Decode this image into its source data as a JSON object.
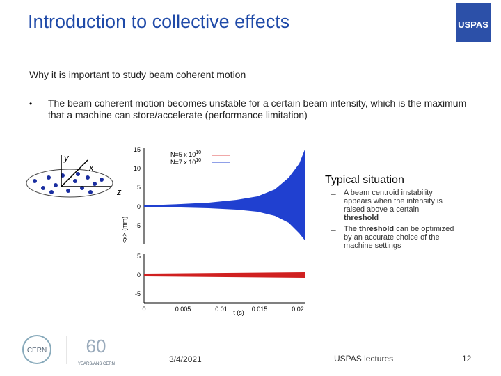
{
  "header": {
    "title": "Introduction to collective effects",
    "logo": "USPAS"
  },
  "subtitle": "Why it is important to study beam coherent motion",
  "bullet": {
    "marker": "•",
    "text": "The beam coherent motion becomes unstable for a certain beam intensity, which is the maximum that a machine can store/accelerate (performance limitation)"
  },
  "diagram": {
    "y_label": "y",
    "x_label": "x",
    "z_label": "z"
  },
  "figure": {
    "legend": [
      {
        "text": "N=5 x 10",
        "exponent": "10"
      },
      {
        "text": "N=7 x 10",
        "exponent": "10"
      }
    ],
    "top_ticks": [
      "15",
      "10",
      "5",
      "0",
      "-5"
    ],
    "bottom_ticks": [
      "5",
      "0",
      "-5"
    ],
    "x_ticks": [
      "0",
      "0.005",
      "0.01",
      "0.015",
      "0.02"
    ],
    "x_label": "t (s)",
    "y_label": "<x> (mm)"
  },
  "box": {
    "heading": "Typical situation",
    "items": [
      {
        "marker": "–",
        "parts": [
          {
            "text": "A beam centroid instability appears when the intensity is raised above a certain "
          },
          {
            "text": "threshold",
            "bold": true
          }
        ]
      },
      {
        "marker": "–",
        "parts": [
          {
            "text": "The "
          },
          {
            "text": "threshold",
            "bold": true
          },
          {
            "text": " can be optimized by an accurate choice of the machine settings"
          }
        ]
      }
    ]
  },
  "footer": {
    "cern": "CERN",
    "anniversary": "YEARS/ANS CERN",
    "date": "3/4/2021",
    "event": "USPAS lectures",
    "page": "12"
  }
}
